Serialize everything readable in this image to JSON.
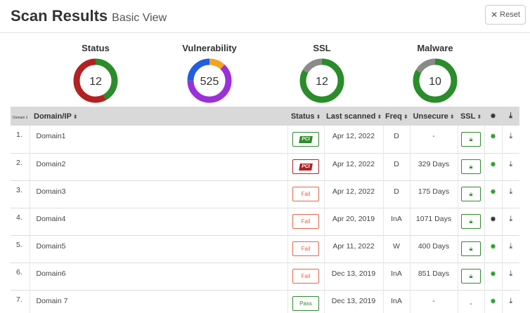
{
  "page": {
    "title": "Scan Results",
    "subtitle": "Basic View",
    "reset_label": "Reset"
  },
  "summary": [
    {
      "label": "Status",
      "value": "12",
      "segments": [
        {
          "color": "#2a8c2a",
          "fraction": 0.42
        },
        {
          "color": "#b22222",
          "fraction": 0.58
        }
      ]
    },
    {
      "label": "Vulnerability",
      "value": "525",
      "segments": [
        {
          "color": "#f4a321",
          "fraction": 0.12
        },
        {
          "color": "#9b30d9",
          "fraction": 0.63
        },
        {
          "color": "#1f5fe0",
          "fraction": 0.25
        }
      ]
    },
    {
      "label": "SSL",
      "value": "12",
      "segments": [
        {
          "color": "#2a8c2a",
          "fraction": 0.83
        },
        {
          "color": "#8a8a8a",
          "fraction": 0.17
        }
      ]
    },
    {
      "label": "Malware",
      "value": "10",
      "segments": [
        {
          "color": "#2a8c2a",
          "fraction": 0.83
        },
        {
          "color": "#8a8a8a",
          "fraction": 0.17
        }
      ]
    }
  ],
  "table": {
    "headers": {
      "num": "Domain 1",
      "domain": "Domain/IP",
      "status": "Status",
      "last_scanned": "Last scanned",
      "freq": "Freq",
      "unsecure": "Unsecure",
      "ssl": "SSL"
    },
    "rows": [
      {
        "num": "1.",
        "domain": "Domain1",
        "status": "PCI",
        "status_type": "pci-pass",
        "last_scanned": "Apr 12, 2022",
        "freq": "D",
        "unsecure": "-",
        "ssl": "lock",
        "malware": "green"
      },
      {
        "num": "2.",
        "domain": "Domain2",
        "status": "PCI",
        "status_type": "pci-fail",
        "last_scanned": "Apr 12, 2022",
        "freq": "D",
        "unsecure": "329 Days",
        "ssl": "lock",
        "malware": "green"
      },
      {
        "num": "3.",
        "domain": "Domain3",
        "status": "Fail",
        "status_type": "fail",
        "last_scanned": "Apr 12, 2022",
        "freq": "D",
        "unsecure": "175 Days",
        "ssl": "lock",
        "malware": "green"
      },
      {
        "num": "4.",
        "domain": "Domain4",
        "status": "Fail",
        "status_type": "fail",
        "last_scanned": "Apr 20, 2019",
        "freq": "InA",
        "unsecure": "1071 Days",
        "ssl": "lock",
        "malware": "dark"
      },
      {
        "num": "5.",
        "domain": "Domain5",
        "status": "Fail",
        "status_type": "fail",
        "last_scanned": "Apr 11, 2022",
        "freq": "W",
        "unsecure": "400 Days",
        "ssl": "lock",
        "malware": "green"
      },
      {
        "num": "6.",
        "domain": "Domain6",
        "status": "Fail",
        "status_type": "fail",
        "last_scanned": "Dec 13, 2019",
        "freq": "InA",
        "unsecure": "851 Days",
        "ssl": "lock",
        "malware": "green"
      },
      {
        "num": "7.",
        "domain": "Domain 7",
        "status": "Pass",
        "status_type": "pass",
        "last_scanned": "Dec 13, 2019",
        "freq": "InA",
        "unsecure": "-",
        "ssl": "-",
        "malware": "green"
      }
    ]
  },
  "icons": {
    "reset": "close-icon",
    "sort": "sort-icon",
    "lock": "lock-icon",
    "malware": "bug-icon",
    "download": "download-icon"
  }
}
